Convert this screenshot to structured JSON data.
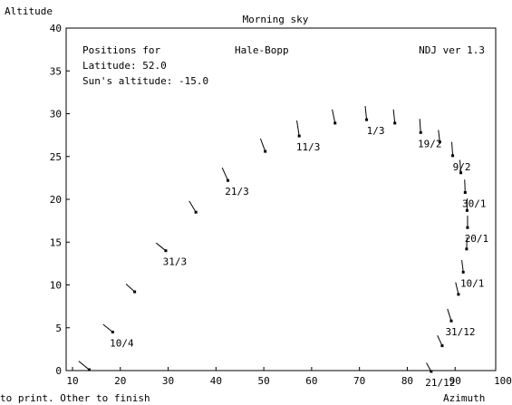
{
  "chart_data": {
    "type": "scatter",
    "title": "Morning sky",
    "xlabel": "Azimuth",
    "ylabel": "Altitude",
    "xlim": [
      10,
      100
    ],
    "ylim": [
      0,
      40
    ],
    "x_ticks": [
      10,
      20,
      30,
      40,
      50,
      60,
      70,
      80,
      90,
      100
    ],
    "y_ticks": [
      0,
      5,
      10,
      15,
      20,
      25,
      30,
      35,
      40
    ],
    "grid": false,
    "info": {
      "positions_label": "Positions for",
      "comet": "Hale-Bopp",
      "version": "NDJ ver 1.3",
      "latitude": "Latitude: 52.0",
      "sun_altitude": "Sun's altitude: -15.0"
    },
    "points": [
      {
        "x": 13.5,
        "y": 0.1,
        "dx": -2.2,
        "dy": 1.0,
        "label": ""
      },
      {
        "x": 18.4,
        "y": 4.5,
        "dx": -2.0,
        "dy": 0.9,
        "label": "10/4"
      },
      {
        "x": 23.0,
        "y": 9.2,
        "dx": -1.8,
        "dy": 0.9,
        "label": ""
      },
      {
        "x": 29.5,
        "y": 14.0,
        "dx": -2.0,
        "dy": 0.9,
        "label": "31/3"
      },
      {
        "x": 35.8,
        "y": 18.5,
        "dx": -1.4,
        "dy": 1.3,
        "label": ""
      },
      {
        "x": 42.5,
        "y": 22.2,
        "dx": -1.2,
        "dy": 1.5,
        "label": "21/3"
      },
      {
        "x": 50.3,
        "y": 25.6,
        "dx": -1.0,
        "dy": 1.5,
        "label": ""
      },
      {
        "x": 57.4,
        "y": 27.4,
        "dx": -0.5,
        "dy": 1.8,
        "label": "11/3"
      },
      {
        "x": 64.9,
        "y": 28.9,
        "dx": -0.6,
        "dy": 1.6,
        "label": ""
      },
      {
        "x": 71.5,
        "y": 29.3,
        "dx": -0.3,
        "dy": 1.6,
        "label": "1/3"
      },
      {
        "x": 77.4,
        "y": 28.9,
        "dx": -0.3,
        "dy": 1.6,
        "label": ""
      },
      {
        "x": 82.8,
        "y": 27.8,
        "dx": -0.2,
        "dy": 1.6,
        "label": "19/2"
      },
      {
        "x": 86.8,
        "y": 26.7,
        "dx": -0.3,
        "dy": 1.4,
        "label": ""
      },
      {
        "x": 89.5,
        "y": 25.1,
        "dx": -0.2,
        "dy": 1.6,
        "label": "9/2"
      },
      {
        "x": 91.2,
        "y": 23.1,
        "dx": -0.2,
        "dy": 1.5,
        "label": ""
      },
      {
        "x": 92.1,
        "y": 20.8,
        "dx": -0.1,
        "dy": 1.5,
        "label": "30/1"
      },
      {
        "x": 92.5,
        "y": 18.7,
        "dx": 0.0,
        "dy": 1.4,
        "label": ""
      },
      {
        "x": 92.6,
        "y": 16.7,
        "dx": 0.0,
        "dy": 1.4,
        "label": "20/1"
      },
      {
        "x": 92.4,
        "y": 14.2,
        "dx": 0.1,
        "dy": 1.4,
        "label": ""
      },
      {
        "x": 91.7,
        "y": 11.5,
        "dx": -0.3,
        "dy": 1.4,
        "label": "10/1"
      },
      {
        "x": 90.7,
        "y": 8.9,
        "dx": -0.6,
        "dy": 1.4,
        "label": ""
      },
      {
        "x": 89.2,
        "y": 5.8,
        "dx": -0.8,
        "dy": 1.4,
        "label": "31/12"
      },
      {
        "x": 87.3,
        "y": 2.9,
        "dx": -1.0,
        "dy": 1.2,
        "label": ""
      },
      {
        "x": 85.0,
        "y": -0.1,
        "dx": -1.0,
        "dy": 1.0,
        "label": "21/12"
      }
    ]
  },
  "status_bar": {
    "instructions": "to print. Other to finish"
  }
}
